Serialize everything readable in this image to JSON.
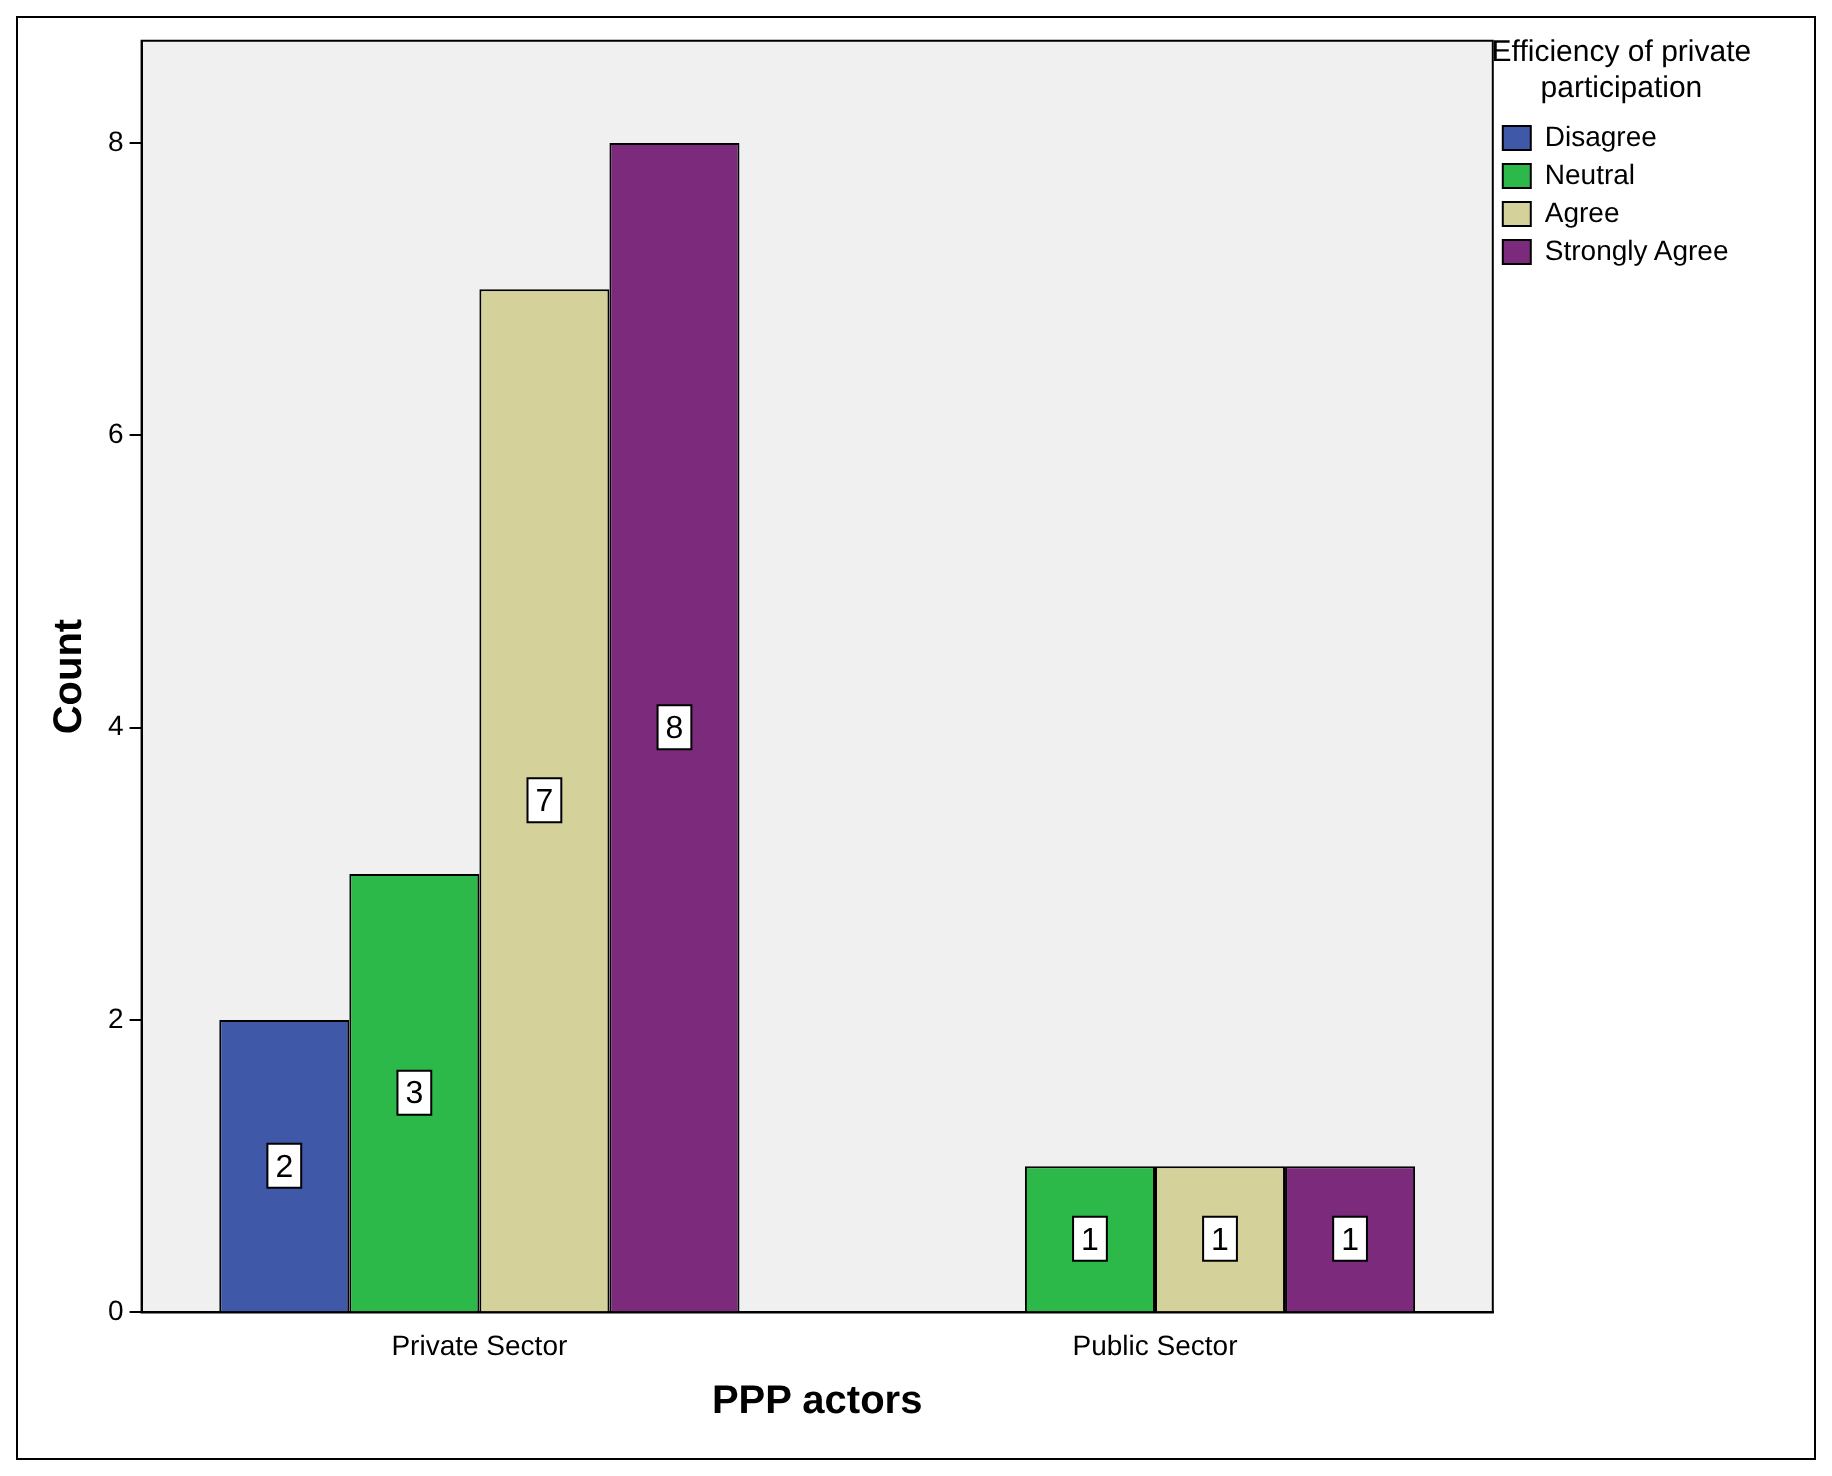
{
  "chart_data": {
    "type": "bar",
    "xlabel": "PPP actors",
    "ylabel": "Count",
    "legend_title": "Efficiency of private participation",
    "categories": [
      "Private Sector",
      "Public Sector"
    ],
    "series": [
      {
        "name": "Disagree",
        "color": "#3f58a8",
        "values": [
          2,
          null
        ]
      },
      {
        "name": "Neutral",
        "color": "#2db84a",
        "values": [
          3,
          1
        ]
      },
      {
        "name": "Agree",
        "color": "#d5d19b",
        "values": [
          7,
          1
        ]
      },
      {
        "name": "Strongly Agree",
        "color": "#7b2a7c",
        "values": [
          8,
          1
        ]
      }
    ],
    "ylim": [
      0,
      8.7
    ],
    "yticks": [
      0,
      2,
      4,
      6,
      8
    ],
    "grid": false,
    "legend": "top right",
    "data_labels": true
  }
}
